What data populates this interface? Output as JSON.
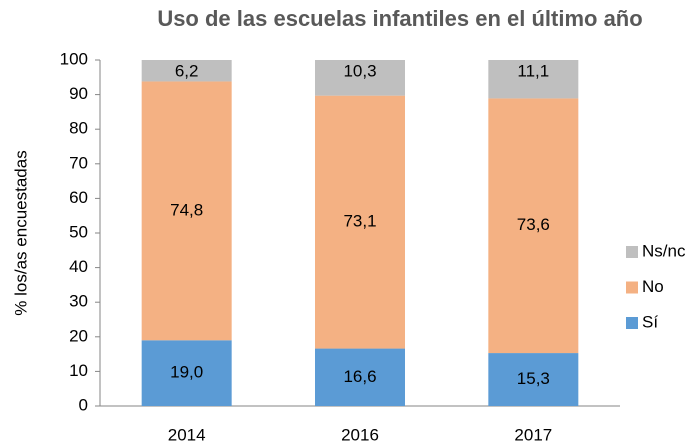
{
  "chart_data": {
    "type": "bar",
    "stacked": true,
    "title": "Uso de las escuelas infantiles en el último año",
    "y_label": "%  los/as encuestadas",
    "categories": [
      "2014",
      "2016",
      "2017"
    ],
    "series": [
      {
        "name": "Sí",
        "color": "#5b9bd5",
        "values": [
          19.0,
          16.6,
          15.3
        ],
        "value_labels": [
          "19,0",
          "16,6",
          "15,3"
        ]
      },
      {
        "name": "No",
        "color": "#f4b183",
        "values": [
          74.8,
          73.1,
          73.6
        ],
        "value_labels": [
          "74,8",
          "73,1",
          "73,6"
        ]
      },
      {
        "name": "Ns/nc",
        "color": "#bfbfbf",
        "values": [
          6.2,
          10.3,
          11.1
        ],
        "value_labels": [
          "6,2",
          "10,3",
          "11,1"
        ]
      }
    ],
    "ylim": [
      0,
      100
    ],
    "yticks": [
      0,
      10,
      20,
      30,
      40,
      50,
      60,
      70,
      80,
      90,
      100
    ],
    "grid": false,
    "legend": "right"
  }
}
